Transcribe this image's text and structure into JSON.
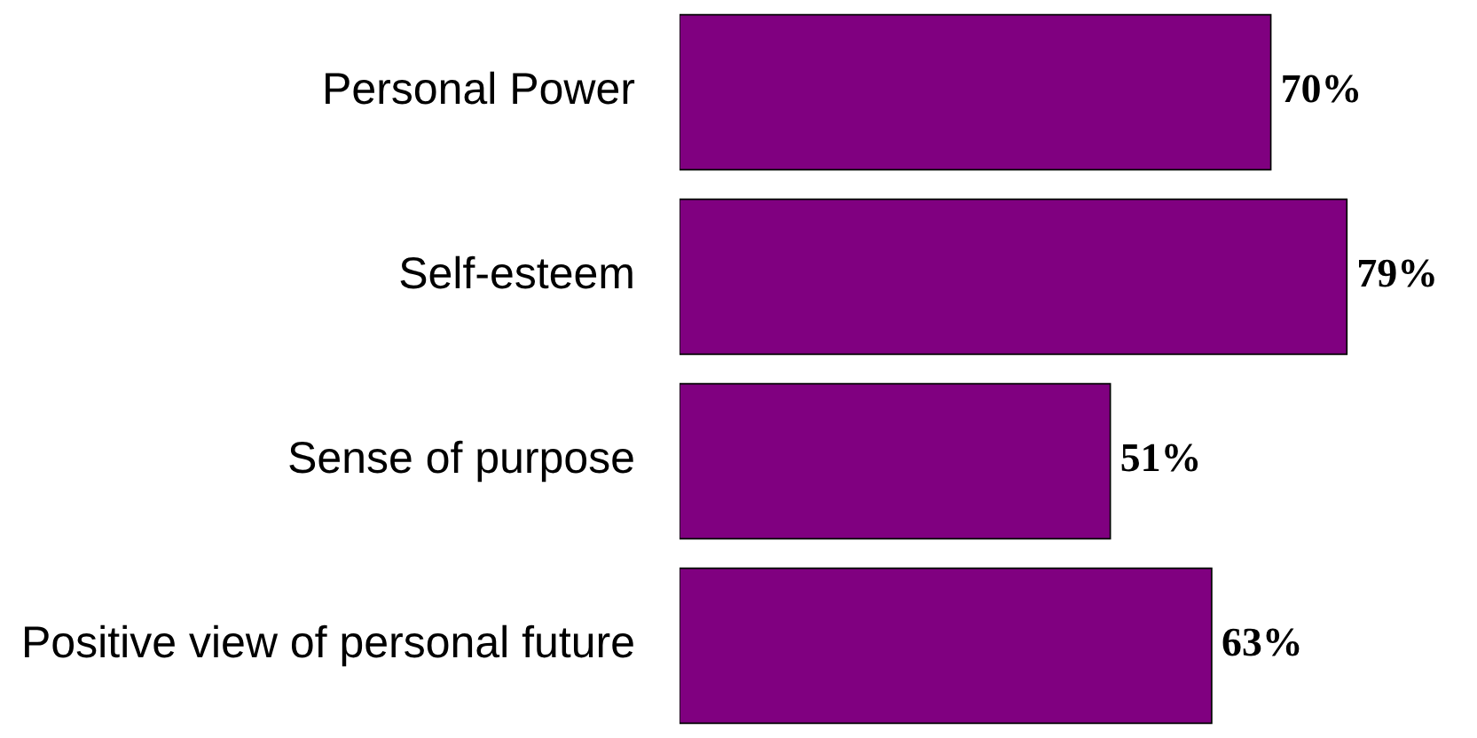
{
  "chart_data": {
    "type": "bar",
    "orientation": "horizontal",
    "categories": [
      "Personal Power",
      "Self-esteem",
      "Sense of purpose",
      "Positive view of personal future"
    ],
    "values": [
      70,
      79,
      51,
      63
    ],
    "value_labels": [
      "70%",
      "79%",
      "51%",
      "63%"
    ],
    "color": "#800080"
  }
}
